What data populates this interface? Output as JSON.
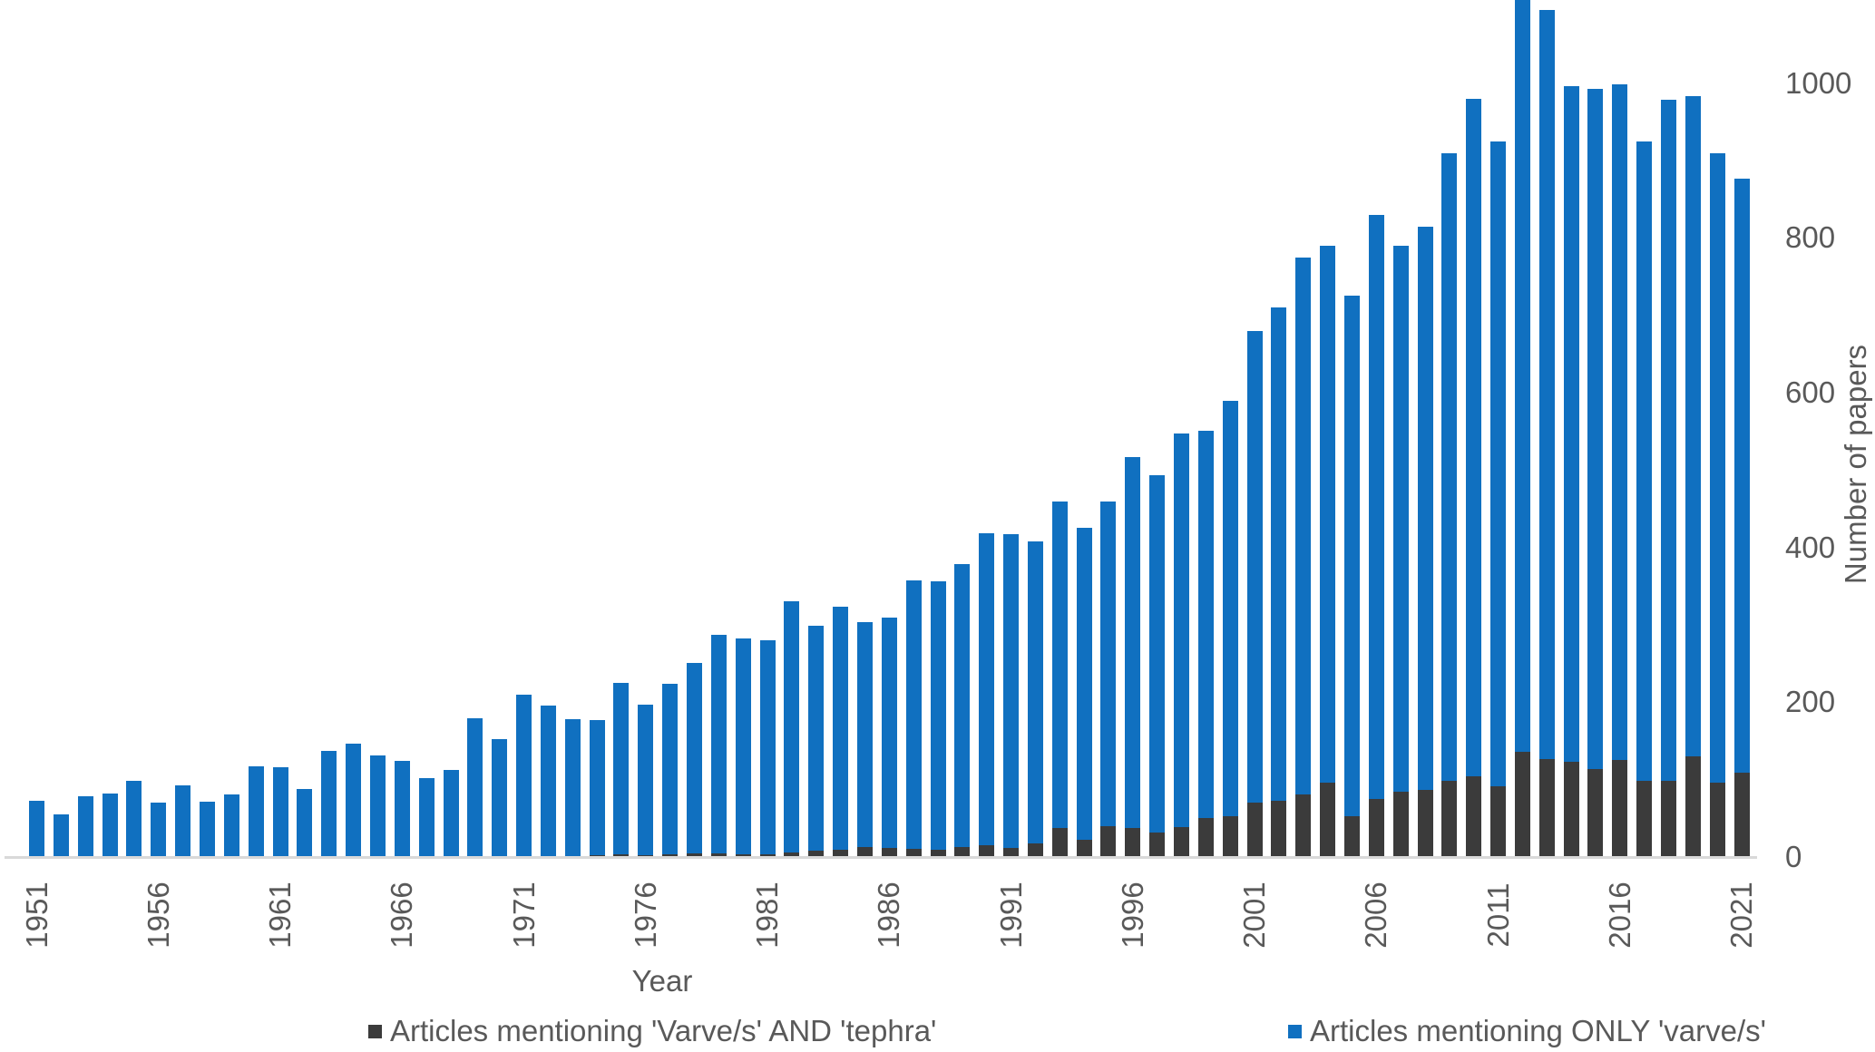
{
  "figure": {
    "background": "#ffffff"
  },
  "colors": {
    "tephra_series": "#3b3b3b",
    "varve_series": "#1070c0",
    "axis_text": "#595959",
    "axis_line": "#d9d9d9"
  },
  "chart_data": {
    "type": "bar",
    "stacked": true,
    "xlabel": "Year",
    "ylabel": "Number of papers",
    "ylim": [
      0,
      1000
    ],
    "yticks": [
      0,
      200,
      400,
      600,
      800,
      1000
    ],
    "xtick_years": [
      1951,
      1956,
      1961,
      1966,
      1971,
      1976,
      1981,
      1986,
      1991,
      1996,
      2001,
      2006,
      2011,
      2016,
      2021
    ],
    "grid": false,
    "legend_position": "bottom",
    "categories": [
      1951,
      1952,
      1953,
      1954,
      1955,
      1956,
      1957,
      1958,
      1959,
      1960,
      1961,
      1962,
      1963,
      1964,
      1965,
      1966,
      1967,
      1968,
      1969,
      1970,
      1971,
      1972,
      1973,
      1974,
      1975,
      1976,
      1977,
      1978,
      1979,
      1980,
      1981,
      1982,
      1983,
      1984,
      1985,
      1986,
      1987,
      1988,
      1989,
      1990,
      1991,
      1992,
      1993,
      1994,
      1995,
      1996,
      1997,
      1998,
      1999,
      2000,
      2001,
      2002,
      2003,
      2004,
      2005,
      2006,
      2007,
      2008,
      2009,
      2010,
      2011,
      2012,
      2013,
      2014,
      2015,
      2016,
      2017,
      2018,
      2019,
      2020,
      2021
    ],
    "series": [
      {
        "name": "Articles mentioning 'Varve/s' AND 'tephra'",
        "color": "#3b3b3b",
        "values": [
          0,
          0,
          0,
          0,
          0,
          0,
          0,
          0,
          0,
          0,
          0,
          0,
          0,
          0,
          0,
          0,
          0,
          0,
          0,
          0,
          0,
          0,
          1,
          2,
          3,
          2,
          4,
          5,
          5,
          3,
          4,
          6,
          8,
          9,
          13,
          12,
          11,
          9,
          13,
          15,
          12,
          18,
          37,
          22,
          40,
          37,
          32,
          39,
          51,
          53,
          70,
          73,
          81,
          96,
          53,
          75,
          84,
          87,
          99,
          104,
          92,
          136,
          127,
          123,
          114,
          126,
          99,
          99,
          130,
          96,
          109
        ]
      },
      {
        "name": "Articles mentioning ONLY 'varve/s'",
        "color": "#1070c0",
        "values": [
          73,
          55,
          79,
          82,
          98,
          70,
          93,
          72,
          81,
          117,
          116,
          88,
          137,
          147,
          131,
          124,
          102,
          113,
          179,
          152,
          210,
          196,
          177,
          175,
          222,
          195,
          220,
          246,
          282,
          280,
          276,
          324,
          291,
          314,
          291,
          297,
          346,
          347,
          365,
          403,
          405,
          390,
          422,
          403,
          420,
          480,
          462,
          508,
          500,
          537,
          610,
          637,
          694,
          694,
          672,
          755,
          706,
          728,
          811,
          876,
          833,
          971,
          968,
          873,
          879,
          873,
          826,
          879,
          853,
          813,
          768
        ]
      }
    ]
  },
  "legend": {
    "item1": "Articles mentioning 'Varve/s' AND 'tephra'",
    "item2": "Articles mentioning ONLY 'varve/s'"
  }
}
